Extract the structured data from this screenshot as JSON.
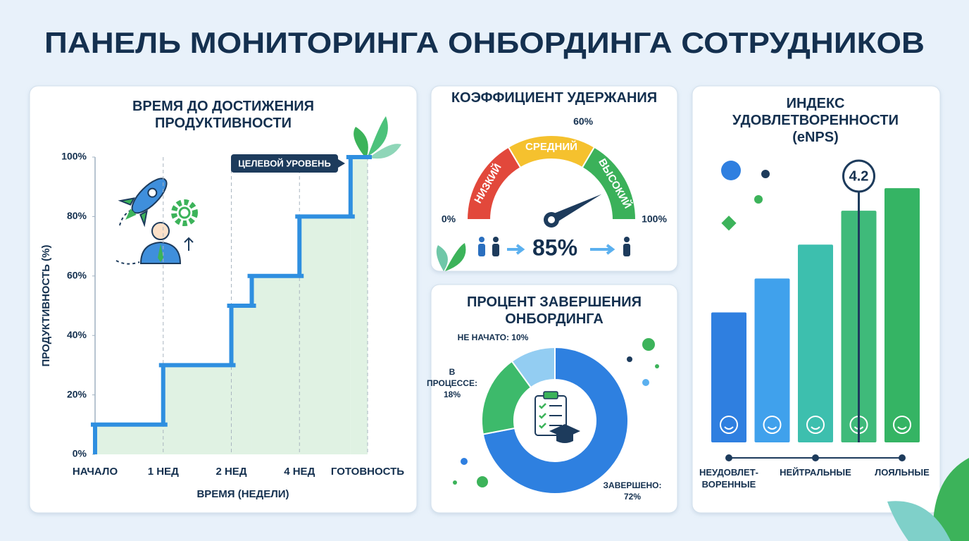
{
  "title": "ПАНЕЛЬ МОНИТОРИНГА ОНБОРДИНГА СОТРУДНИКОВ",
  "chart_data": [
    {
      "type": "step",
      "title": "ВРЕМЯ ДО ДОСТИЖЕНИЯ ПРОДУКТИВНОСТИ",
      "x_label": "ВРЕМЯ (НЕДЕЛИ)",
      "y_label": "ПРОДУКТИВНОСТЬ (%)",
      "x": [
        0,
        1,
        2,
        2.3,
        3,
        3.75
      ],
      "values": [
        10,
        30,
        50,
        60,
        80,
        100
      ],
      "color": "#2f8fe0",
      "fill": "#e0f2e3",
      "xlim": [
        0,
        4
      ],
      "xticks": [
        {
          "value": 0,
          "label": "НАЧАЛО"
        },
        {
          "value": 1,
          "label": "1 НЕД"
        },
        {
          "value": 2,
          "label": "2 НЕД"
        },
        {
          "value": 3,
          "label": "4 НЕД"
        },
        {
          "value": 4,
          "label": "ГОТОВНОСТЬ"
        }
      ],
      "ylim": [
        0,
        100
      ],
      "yticks": [
        {
          "value": 0,
          "label": "0%"
        },
        {
          "value": 20,
          "label": "20%"
        },
        {
          "value": 40,
          "label": "40%"
        },
        {
          "value": 60,
          "label": "60%"
        },
        {
          "value": 80,
          "label": "80%"
        },
        {
          "value": 100,
          "label": "100%"
        }
      ],
      "annotation": "ЦЕЛЕВОЙ УРОВЕНЬ"
    },
    {
      "type": "gauge",
      "title": "КОЭФФИЦИЕНТ УДЕРЖАНИЯ",
      "value": 85,
      "value_label": "85%",
      "ylim": [
        0,
        100
      ],
      "yticks": [
        {
          "value": 0,
          "label": "0%"
        },
        {
          "value": 60,
          "label": "60%"
        },
        {
          "value": 100,
          "label": "100%"
        }
      ],
      "bands": [
        {
          "label": "НИЗКИЙ",
          "from": 0,
          "to": 33,
          "color": "#e2483b"
        },
        {
          "label": "СРЕДНИЙ",
          "from": 33,
          "to": 67,
          "color": "#f5c12e"
        },
        {
          "label": "ВЫСОКИЙ",
          "from": 67,
          "to": 100,
          "color": "#3bb15a"
        }
      ]
    },
    {
      "type": "donut",
      "title": "ПРОЦЕНТ ЗАВЕРШЕНИЯ ОНБОРДИНГА",
      "values": [
        72,
        18,
        10
      ],
      "value_labels": [
        "ЗАВЕРШЕНО: 72%",
        "В ПРОЦЕССЕ: 18%",
        "НЕ НАЧАТО: 10%"
      ],
      "colors": [
        "#2e80e0",
        "#3dba6b",
        "#93cdf2"
      ]
    },
    {
      "type": "bar",
      "title": "ИНДЕКС УДОВЛЕТВОРЕННОСТИ (eNPS)",
      "categories": [
        "НЕУДОВЛЕТ-ВОРЕННЫЕ",
        null,
        "НЕЙТРАЛЬНЫЕ",
        null,
        "ЛОЯЛЬНЫЕ"
      ],
      "values": [
        2.3,
        2.9,
        3.5,
        4.1,
        4.5
      ],
      "colors": [
        "#2f7fe0",
        "#40a1ec",
        "#3dbfae",
        "#3fba7a",
        "#35b464"
      ],
      "ylim": [
        0,
        5
      ],
      "score": 4.2
    }
  ]
}
